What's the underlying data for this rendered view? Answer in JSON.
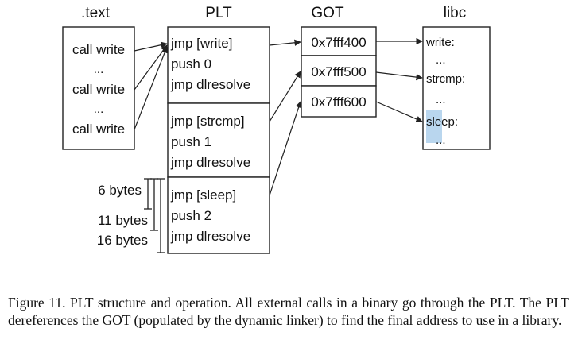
{
  "headers": {
    "text": ".text",
    "plt": "PLT",
    "got": "GOT",
    "libc": "libc"
  },
  "text_section": {
    "lines": [
      "call write",
      "...",
      "call write",
      "...",
      "call write"
    ]
  },
  "plt": {
    "entries": [
      {
        "lines": [
          "jmp [write]",
          "push 0",
          "jmp dlresolve"
        ]
      },
      {
        "lines": [
          "jmp [strcmp]",
          "push 1",
          "jmp dlresolve"
        ]
      },
      {
        "lines": [
          "jmp [sleep]",
          "push 2",
          "jmp dlresolve"
        ]
      }
    ]
  },
  "got": {
    "entries": [
      "0x7fff400",
      "0x7fff500",
      "0x7fff600"
    ]
  },
  "libc": {
    "lines": [
      "write:",
      "...",
      "strcmp:",
      "...",
      "sleep:",
      "..."
    ]
  },
  "sizes": [
    "6 bytes",
    "11 bytes",
    "16 bytes"
  ],
  "caption": "Figure 11.   PLT structure and operation. All external calls in a binary go through the PLT. The PLT dereferences the GOT (populated by the dynamic linker) to find the final address to use in a library."
}
